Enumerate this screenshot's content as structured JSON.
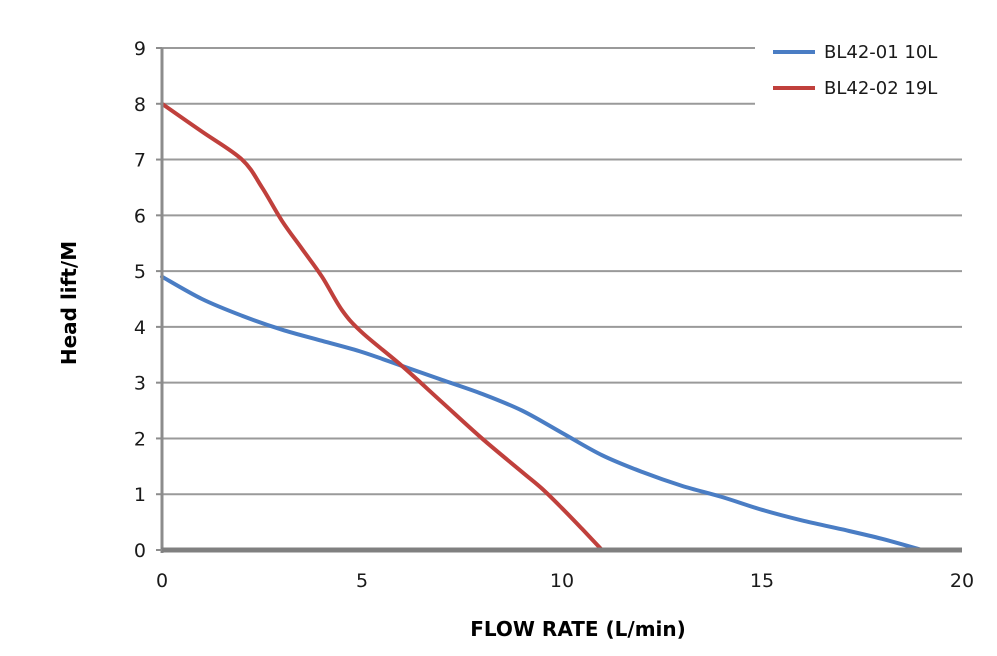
{
  "chart_data": {
    "type": "line",
    "title": "",
    "xlabel": "FLOW RATE (L/min)",
    "ylabel": "Head lift/M",
    "xlim": [
      0,
      20
    ],
    "ylim": [
      0,
      9
    ],
    "xticks": [
      0,
      5,
      10,
      15,
      20
    ],
    "yticks": [
      0,
      1,
      2,
      3,
      4,
      5,
      6,
      7,
      8,
      9
    ],
    "grid": "horizontal",
    "legend_position": "top-right",
    "series": [
      {
        "name": "BL42-01 10L",
        "color": "#4a7dc4",
        "x": [
          0,
          1,
          2,
          3,
          4,
          5,
          6,
          7,
          8,
          9,
          10,
          11,
          12,
          13,
          14,
          15,
          16,
          17,
          18,
          19
        ],
        "y": [
          4.9,
          4.5,
          4.2,
          3.95,
          3.75,
          3.55,
          3.3,
          3.05,
          2.8,
          2.5,
          2.1,
          1.7,
          1.4,
          1.15,
          0.95,
          0.72,
          0.53,
          0.37,
          0.2,
          0.0
        ]
      },
      {
        "name": "BL42-02 19L",
        "color": "#c0403c",
        "x": [
          0,
          1,
          2,
          2.5,
          3,
          3.5,
          4,
          4.5,
          5,
          6,
          7,
          8,
          9,
          9.5,
          10,
          10.5,
          11
        ],
        "y": [
          8.0,
          7.5,
          7.0,
          6.5,
          5.9,
          5.4,
          4.9,
          4.3,
          3.9,
          3.3,
          2.65,
          2.0,
          1.4,
          1.1,
          0.75,
          0.38,
          0.0
        ]
      }
    ]
  }
}
